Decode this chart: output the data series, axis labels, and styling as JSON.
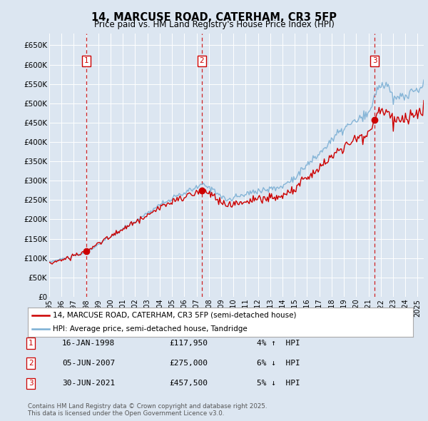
{
  "title": "14, MARCUSE ROAD, CATERHAM, CR3 5FP",
  "subtitle": "Price paid vs. HM Land Registry's House Price Index (HPI)",
  "ylim": [
    0,
    680000
  ],
  "yticks": [
    0,
    50000,
    100000,
    150000,
    200000,
    250000,
    300000,
    350000,
    400000,
    450000,
    500000,
    550000,
    600000,
    650000
  ],
  "ytick_labels": [
    "£0",
    "£50K",
    "£100K",
    "£150K",
    "£200K",
    "£250K",
    "£300K",
    "£350K",
    "£400K",
    "£450K",
    "£500K",
    "£550K",
    "£600K",
    "£650K"
  ],
  "background_color": "#dce6f1",
  "plot_bg_color": "#dce6f1",
  "grid_color": "#ffffff",
  "red_line_color": "#cc0000",
  "blue_line_color": "#7bafd4",
  "sale_marker_color": "#cc0000",
  "dashed_line_color": "#cc0000",
  "legend_label_red": "14, MARCUSE ROAD, CATERHAM, CR3 5FP (semi-detached house)",
  "legend_label_blue": "HPI: Average price, semi-detached house, Tandridge",
  "transactions": [
    {
      "num": 1,
      "date_str": "16-JAN-1998",
      "date_x": 1998.04,
      "price": 117950,
      "pct": "4%",
      "dir": "↑"
    },
    {
      "num": 2,
      "date_str": "05-JUN-2007",
      "date_x": 2007.43,
      "price": 275000,
      "pct": "6%",
      "dir": "↓"
    },
    {
      "num": 3,
      "date_str": "30-JUN-2021",
      "date_x": 2021.5,
      "price": 457500,
      "pct": "5%",
      "dir": "↓"
    }
  ],
  "footer": "Contains HM Land Registry data © Crown copyright and database right 2025.\nThis data is licensed under the Open Government Licence v3.0.",
  "xmin": 1995.0,
  "xmax": 2025.5
}
